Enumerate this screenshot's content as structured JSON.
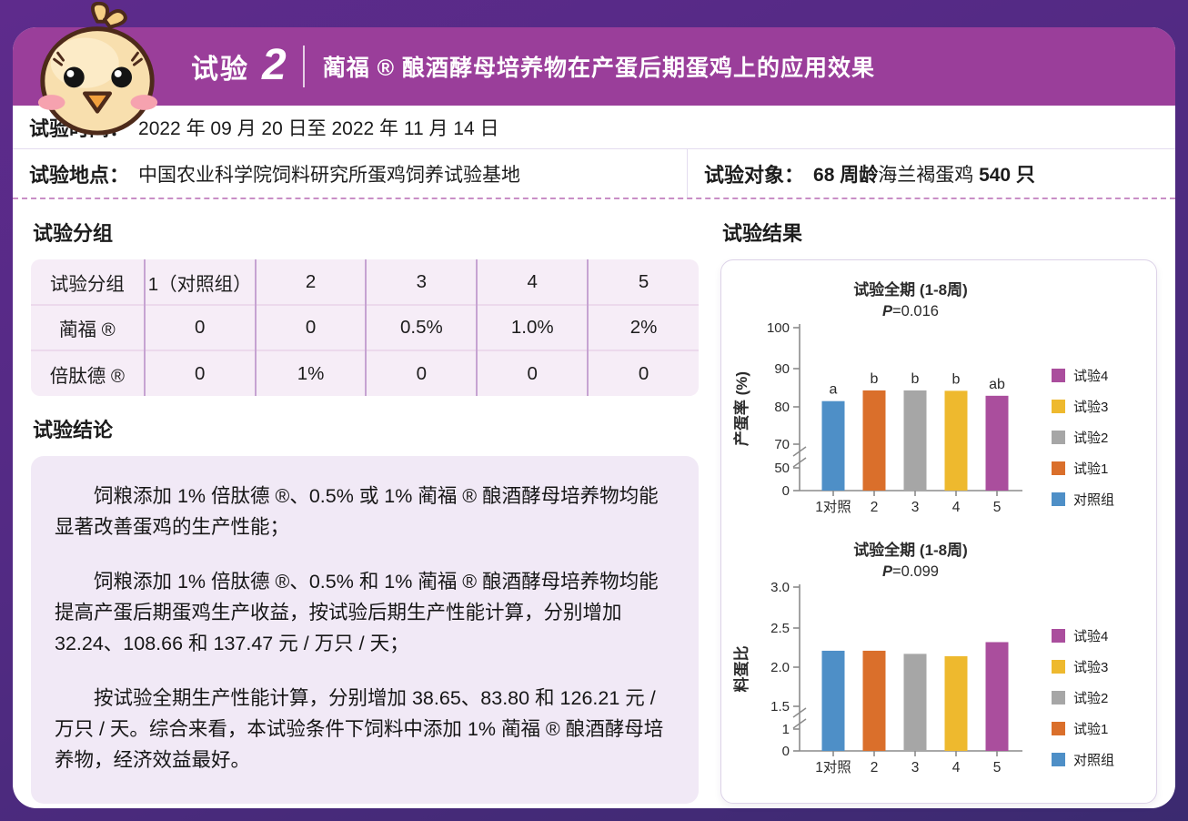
{
  "theme": {
    "frame_top": "#5e2b8c",
    "frame_bottom": "#3b2a70",
    "header_bg": "#9a3e9a",
    "table_bg": "#f6edf7",
    "box_bg": "#f1e9f6",
    "dashed_line": "#c98fc6",
    "axis_color": "#8b8b8b"
  },
  "header": {
    "trial_label": "试验",
    "trial_number": "2",
    "title": "蔺福 ® 酿酒酵母培养物在产蛋后期蛋鸡上的应用效果"
  },
  "info": {
    "time_label": "试验时间：",
    "time_value": "2022 年 09 月 20 日至 2022 年 11 月 14 日",
    "location_label": "试验地点：",
    "location_value": "中国农业科学院饲料研究所蛋鸡饲养试验基地",
    "subject_label": "试验对象：",
    "subject_bold1": "68 周龄",
    "subject_mid": "海兰褐蛋鸡",
    "subject_bold2": "540 只"
  },
  "groups": {
    "heading": "试验分组",
    "table": {
      "header_row": [
        "试验分组",
        "1（对照组）",
        "2",
        "3",
        "4",
        "5"
      ],
      "rows": [
        [
          "蔺福 ®",
          "0",
          "0",
          "0.5%",
          "1.0%",
          "2%"
        ],
        [
          "倍肽德 ®",
          "0",
          "1%",
          "0",
          "0",
          "0"
        ]
      ]
    }
  },
  "conclusion": {
    "heading": "试验结论",
    "paragraphs": [
      "饲粮添加 1% 倍肽德 ®、0.5% 或 1% 蔺福 ® 酿酒酵母培养物均能显著改善蛋鸡的生产性能；",
      "饲粮添加 1% 倍肽德 ®、0.5% 和 1% 蔺福 ® 酿酒酵母培养物均能提高产蛋后期蛋鸡生产收益，按试验后期生产性能计算，分别增加 32.24、108.66 和 137.47 元 / 万只 / 天；",
      "按试验全期生产性能计算，分别增加 38.65、83.80 和 126.21 元 / 万只 / 天。综合来看，本试验条件下饲料中添加 1% 蔺福 ® 酿酒酵母培养物，经济效益最好。"
    ]
  },
  "results": {
    "heading": "试验结果"
  },
  "chart_data": [
    {
      "type": "bar",
      "name": "egg-production-chart",
      "title": "试验全期 (1-8周)",
      "subtitle": "P=0.016",
      "ylabel": "产蛋率 (%)",
      "xlabel": "",
      "categories": [
        "1对照",
        "2",
        "3",
        "4",
        "5"
      ],
      "values": [
        81.5,
        84.3,
        84.3,
        84.2,
        82.9
      ],
      "bar_labels": [
        "a",
        "b",
        "b",
        "b",
        "ab"
      ],
      "bar_colors": [
        "#4e8fc7",
        "#da6f2b",
        "#a6a6a6",
        "#eeb92e",
        "#aa4e9d"
      ],
      "y_ticks": [
        {
          "label": "0",
          "value": 0
        },
        {
          "label": "50",
          "value": 50
        },
        {
          "label": "70",
          "value": 70
        },
        {
          "label": "80",
          "value": 80
        },
        {
          "label": "90",
          "value": 90
        },
        {
          "label": "100",
          "value": 100
        }
      ],
      "ylim": [
        0,
        100
      ],
      "axis_break_between": [
        50,
        70
      ],
      "grid": false,
      "legend_position": "right",
      "legend": [
        {
          "label": "试验4",
          "color": "#aa4e9d"
        },
        {
          "label": "试验3",
          "color": "#eeb92e"
        },
        {
          "label": "试验2",
          "color": "#a6a6a6"
        },
        {
          "label": "试验1",
          "color": "#da6f2b"
        },
        {
          "label": "对照组",
          "color": "#4e8fc7"
        }
      ]
    },
    {
      "type": "bar",
      "name": "feed-egg-ratio-chart",
      "title": "试验全期 (1-8周)",
      "subtitle": "P=0.099",
      "ylabel": "料蛋比",
      "xlabel": "",
      "categories": [
        "1对照",
        "2",
        "3",
        "4",
        "5"
      ],
      "values": [
        2.21,
        2.21,
        2.17,
        2.14,
        2.32
      ],
      "bar_labels": [],
      "bar_colors": [
        "#4e8fc7",
        "#da6f2b",
        "#a6a6a6",
        "#eeb92e",
        "#aa4e9d"
      ],
      "y_ticks": [
        {
          "label": "0",
          "value": 0
        },
        {
          "label": "1",
          "value": 1
        },
        {
          "label": "1.5",
          "value": 1.5
        },
        {
          "label": "2.0",
          "value": 2
        },
        {
          "label": "2.5",
          "value": 2.5
        },
        {
          "label": "3.0",
          "value": 3
        }
      ],
      "ylim": [
        0,
        3
      ],
      "axis_break_between": [
        1,
        1.5
      ],
      "grid": false,
      "legend_position": "right",
      "legend": [
        {
          "label": "试验4",
          "color": "#aa4e9d"
        },
        {
          "label": "试验3",
          "color": "#eeb92e"
        },
        {
          "label": "试验2",
          "color": "#a6a6a6"
        },
        {
          "label": "试验1",
          "color": "#da6f2b"
        },
        {
          "label": "对照组",
          "color": "#4e8fc7"
        }
      ]
    }
  ]
}
